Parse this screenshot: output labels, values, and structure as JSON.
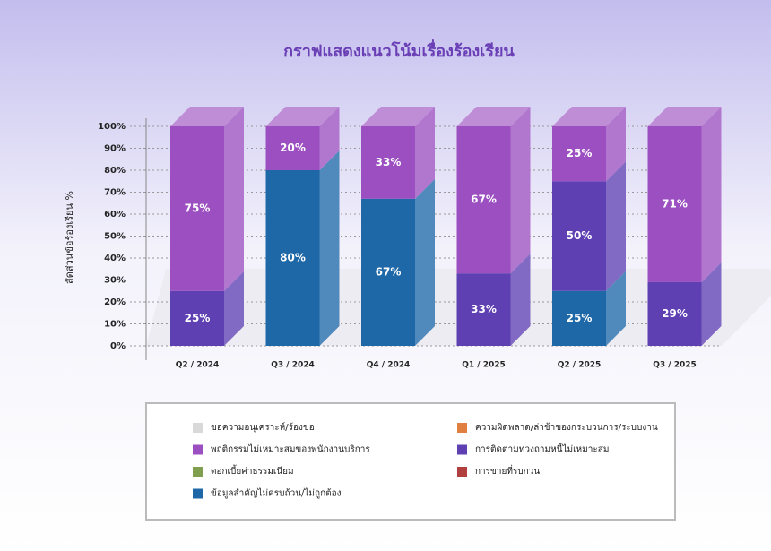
{
  "chart_data": {
    "type": "stacked-bar-3d",
    "title": "กราฟแสดงแนวโน้มเรื่องร้องเรียน",
    "y_label": "สัดส่วนข้อร้องเรียน %",
    "categories": [
      "Q2 / 2024",
      "Q3 / 2024",
      "Q4 / 2024",
      "Q1 / 2025",
      "Q2 / 2025",
      "Q3 / 2025"
    ],
    "ylim": [
      0,
      100
    ],
    "yticks": [
      {
        "value": 0,
        "label": "0%"
      },
      {
        "value": 10,
        "label": "10%"
      },
      {
        "value": 20,
        "label": "20%"
      },
      {
        "value": 30,
        "label": "30%"
      },
      {
        "value": 40,
        "label": "40%"
      },
      {
        "value": 50,
        "label": "50%"
      },
      {
        "value": 60,
        "label": "60%"
      },
      {
        "value": 70,
        "label": "70%"
      },
      {
        "value": 80,
        "label": "80%"
      },
      {
        "value": 90,
        "label": "90%"
      },
      {
        "value": 100,
        "label": "100%"
      }
    ],
    "grid": true,
    "series": [
      {
        "name": "ขอความอนุเคราะห์/ร้องขอ",
        "color": "#d9d9d9",
        "values": [
          0,
          0,
          0,
          0,
          0,
          0
        ],
        "value_labels": [
          null,
          null,
          null,
          null,
          null,
          null
        ]
      },
      {
        "name": "พฤติกรรมไม่เหมาะสมของพนักงานบริการ",
        "color": "#9b4fc0",
        "values": [
          75,
          20,
          33,
          67,
          25,
          71
        ],
        "value_labels": [
          "75%",
          "20%",
          "33%",
          "67%",
          "25%",
          "71%"
        ]
      },
      {
        "name": "ดอกเบี้ยค่าธรรมเนียม",
        "color": "#7f9f4f",
        "values": [
          0,
          0,
          0,
          0,
          0,
          0
        ],
        "value_labels": [
          null,
          null,
          null,
          null,
          null,
          null
        ]
      },
      {
        "name": "ข้อมูลสำคัญไม่ครบถ้วน/ไม่ถูกต้อง",
        "color": "#1f68a8",
        "values": [
          0,
          80,
          67,
          0,
          25,
          0
        ],
        "value_labels": [
          null,
          "80%",
          "67%",
          null,
          "25%",
          null
        ]
      },
      {
        "name": "ความผิดพลาด/ล่าช้าของกระบวนการ/ระบบงาน",
        "color": "#e08040",
        "values": [
          0,
          0,
          0,
          0,
          0,
          0
        ],
        "value_labels": [
          null,
          null,
          null,
          null,
          null,
          null
        ]
      },
      {
        "name": "การติดตามทวงถามหนี้ไม่เหมาะสม",
        "color": "#5e40b2",
        "values": [
          25,
          0,
          0,
          33,
          50,
          29
        ],
        "value_labels": [
          "25%",
          null,
          null,
          "33%",
          "50%",
          "29%"
        ]
      },
      {
        "name": "การขายที่รบกวน",
        "color": "#b04040",
        "values": [
          0,
          0,
          0,
          0,
          0,
          0
        ],
        "value_labels": [
          null,
          null,
          null,
          null,
          null,
          null
        ]
      }
    ]
  }
}
